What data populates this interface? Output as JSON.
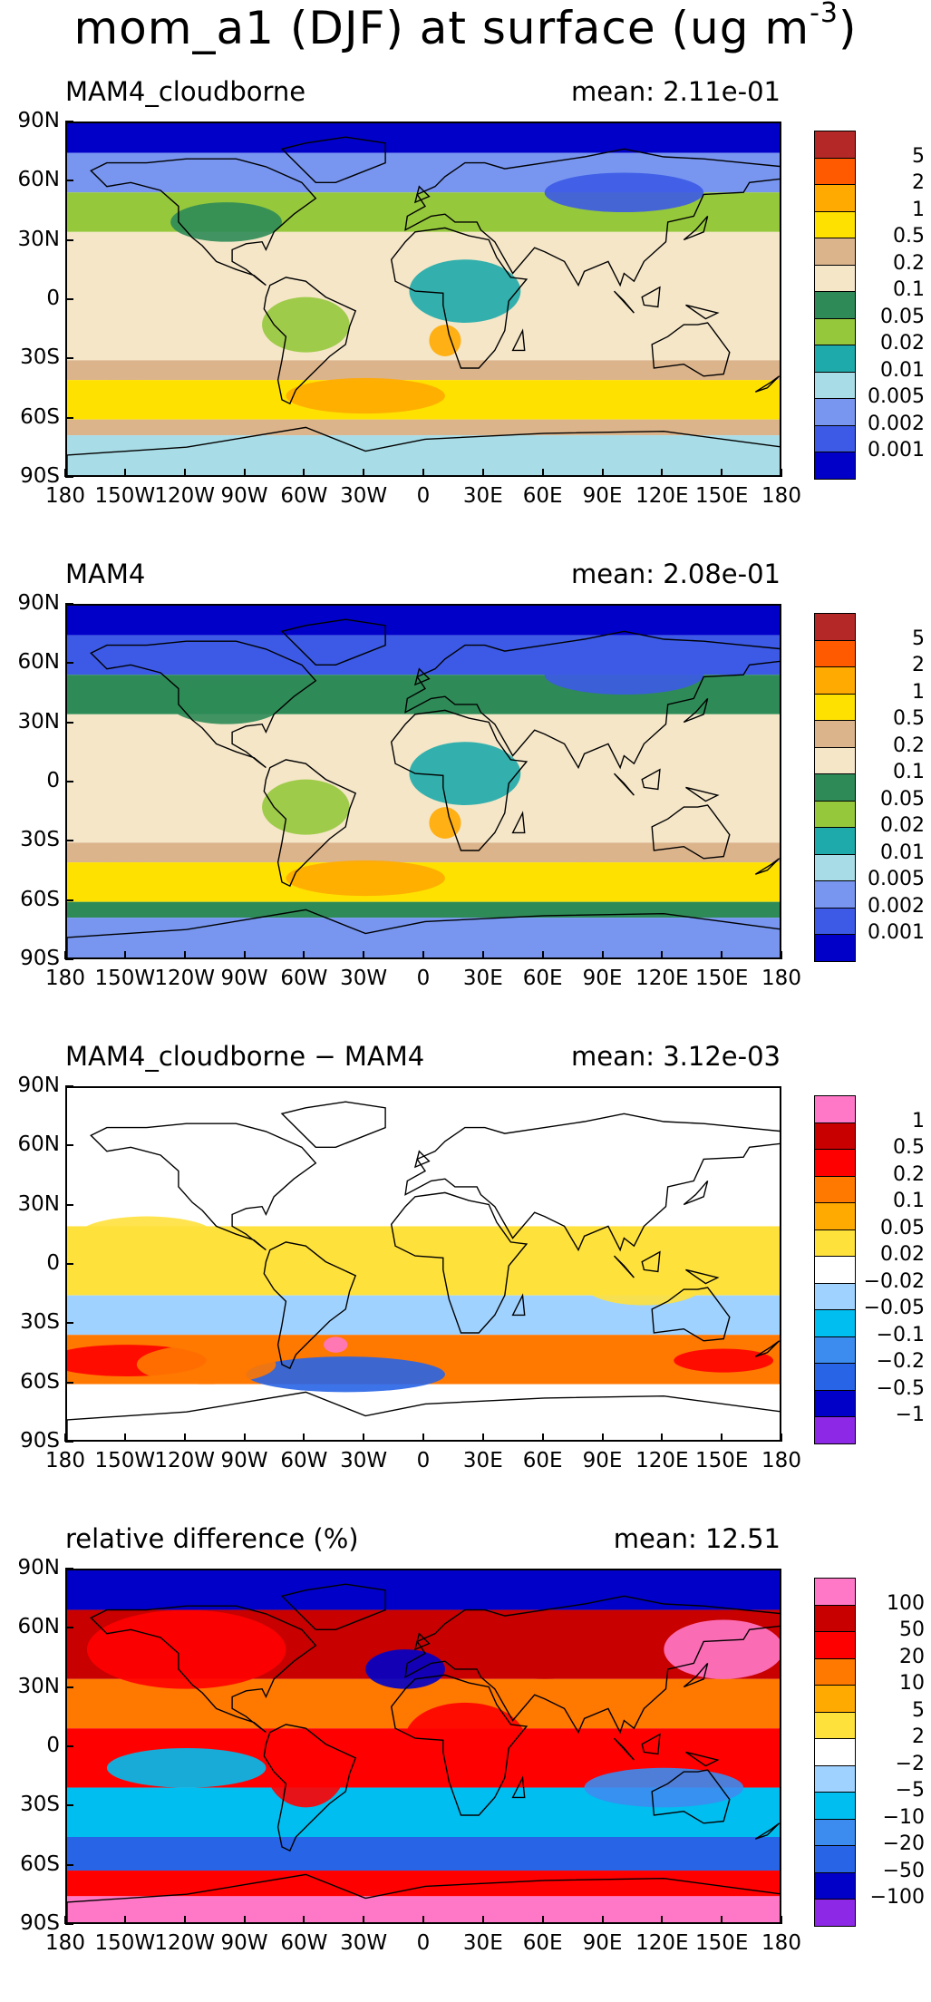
{
  "title": {
    "main": "mom_a1 (DJF) at surface (ug m",
    "exponent": "-3",
    "close": ")"
  },
  "colors": {
    "abs_scale": [
      "#0000c8",
      "#3c5ae6",
      "#7896f0",
      "#a8dce6",
      "#1eaaaa",
      "#96c83c",
      "#2e8b57",
      "#f5e6c8",
      "#dcb48c",
      "#ffe100",
      "#ffaa00",
      "#ff5a00",
      "#b42828"
    ],
    "diff_scale": [
      "#8c28e6",
      "#0000c8",
      "#2864e6",
      "#3c8cf0",
      "#00bef0",
      "#a0d2ff",
      "#ffffff",
      "#ffe13c",
      "#ffaa00",
      "#ff7800",
      "#ff0000",
      "#c80000",
      "#ff78c8"
    ]
  },
  "chart_data": [
    {
      "type": "heatmap",
      "title": "MAM4_cloudborne",
      "mean_label": "mean: 2.11e-01",
      "xlabel": "",
      "ylabel": "",
      "xlim": [
        -180,
        180
      ],
      "ylim": [
        -90,
        90
      ],
      "x_ticks": [
        "180",
        "150W",
        "120W",
        "90W",
        "60W",
        "30W",
        "0",
        "30E",
        "60E",
        "90E",
        "120E",
        "150E",
        "180"
      ],
      "y_ticks": [
        "90N",
        "60N",
        "30N",
        "0",
        "30S",
        "60S",
        "90S"
      ],
      "levels": [
        "5",
        "2",
        "1",
        "0.5",
        "0.2",
        "0.1",
        "0.05",
        "0.02",
        "0.01",
        "0.005",
        "0.002",
        "0.001"
      ],
      "colorbar": "abs",
      "lat_bands": [
        {
          "lat_from": 90,
          "lat_to": 75,
          "level_index": 0
        },
        {
          "lat_from": 75,
          "lat_to": 55,
          "level_index": 2
        },
        {
          "lat_from": 55,
          "lat_to": 35,
          "level_index": 5
        },
        {
          "lat_from": 35,
          "lat_to": -30,
          "level_index": 7
        },
        {
          "lat_from": -30,
          "lat_to": -40,
          "level_index": 8
        },
        {
          "lat_from": -40,
          "lat_to": -60,
          "level_index": 9
        },
        {
          "lat_from": -60,
          "lat_to": -68,
          "level_index": 8
        },
        {
          "lat_from": -68,
          "lat_to": -90,
          "level_index": 3
        }
      ]
    },
    {
      "type": "heatmap",
      "title": "MAM4",
      "mean_label": "mean: 2.08e-01",
      "xlabel": "",
      "ylabel": "",
      "xlim": [
        -180,
        180
      ],
      "ylim": [
        -90,
        90
      ],
      "x_ticks": [
        "180",
        "150W",
        "120W",
        "90W",
        "60W",
        "30W",
        "0",
        "30E",
        "60E",
        "90E",
        "120E",
        "150E",
        "180"
      ],
      "y_ticks": [
        "90N",
        "60N",
        "30N",
        "0",
        "30S",
        "60S",
        "90S"
      ],
      "levels": [
        "5",
        "2",
        "1",
        "0.5",
        "0.2",
        "0.1",
        "0.05",
        "0.02",
        "0.01",
        "0.005",
        "0.002",
        "0.001"
      ],
      "colorbar": "abs",
      "lat_bands": [
        {
          "lat_from": 90,
          "lat_to": 75,
          "level_index": 0
        },
        {
          "lat_from": 75,
          "lat_to": 55,
          "level_index": 1
        },
        {
          "lat_from": 55,
          "lat_to": 35,
          "level_index": 6
        },
        {
          "lat_from": 35,
          "lat_to": -30,
          "level_index": 7
        },
        {
          "lat_from": -30,
          "lat_to": -40,
          "level_index": 8
        },
        {
          "lat_from": -40,
          "lat_to": -60,
          "level_index": 9
        },
        {
          "lat_from": -60,
          "lat_to": -68,
          "level_index": 6
        },
        {
          "lat_from": -68,
          "lat_to": -90,
          "level_index": 2
        }
      ]
    },
    {
      "type": "heatmap",
      "title": "MAM4_cloudborne − MAM4",
      "mean_label": "mean: 3.12e-03",
      "xlabel": "",
      "ylabel": "",
      "xlim": [
        -180,
        180
      ],
      "ylim": [
        -90,
        90
      ],
      "x_ticks": [
        "180",
        "150W",
        "120W",
        "90W",
        "60W",
        "30W",
        "0",
        "30E",
        "60E",
        "90E",
        "120E",
        "150E",
        "180"
      ],
      "y_ticks": [
        "90N",
        "60N",
        "30N",
        "0",
        "30S",
        "60S",
        "90S"
      ],
      "levels": [
        "1",
        "0.5",
        "0.2",
        "0.1",
        "0.05",
        "0.02",
        "−0.02",
        "−0.05",
        "−0.1",
        "−0.2",
        "−0.5",
        "−1"
      ],
      "colorbar": "diff",
      "lat_bands": [
        {
          "lat_from": 90,
          "lat_to": 20,
          "level_index": 6
        },
        {
          "lat_from": 20,
          "lat_to": -15,
          "level_index": 7
        },
        {
          "lat_from": -15,
          "lat_to": -35,
          "level_index": 5
        },
        {
          "lat_from": -35,
          "lat_to": -60,
          "level_index": 9
        },
        {
          "lat_from": -60,
          "lat_to": -90,
          "level_index": 6
        }
      ]
    },
    {
      "type": "heatmap",
      "title": "relative difference (%)",
      "mean_label": "mean: 12.51",
      "xlabel": "",
      "ylabel": "",
      "xlim": [
        -180,
        180
      ],
      "ylim": [
        -90,
        90
      ],
      "x_ticks": [
        "180",
        "150W",
        "120W",
        "90W",
        "60W",
        "30W",
        "0",
        "30E",
        "60E",
        "90E",
        "120E",
        "150E",
        "180"
      ],
      "y_ticks": [
        "90N",
        "60N",
        "30N",
        "0",
        "30S",
        "60S",
        "90S"
      ],
      "levels": [
        "100",
        "50",
        "20",
        "10",
        "5",
        "2",
        "−2",
        "−5",
        "−10",
        "−20",
        "−50",
        "−100"
      ],
      "colorbar": "diff",
      "lat_bands": [
        {
          "lat_from": 90,
          "lat_to": 70,
          "level_index": 1
        },
        {
          "lat_from": 70,
          "lat_to": 35,
          "level_index": 11
        },
        {
          "lat_from": 35,
          "lat_to": 10,
          "level_index": 9
        },
        {
          "lat_from": 10,
          "lat_to": -20,
          "level_index": 10
        },
        {
          "lat_from": -20,
          "lat_to": -45,
          "level_index": 4
        },
        {
          "lat_from": -45,
          "lat_to": -62,
          "level_index": 2
        },
        {
          "lat_from": -62,
          "lat_to": -75,
          "level_index": 10
        },
        {
          "lat_from": -75,
          "lat_to": -90,
          "level_index": 12
        }
      ]
    }
  ]
}
